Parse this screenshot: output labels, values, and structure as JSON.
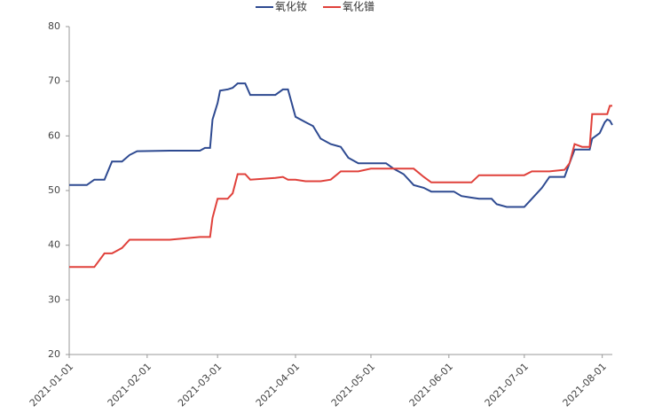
{
  "chart_data": {
    "type": "line",
    "x": [
      "2021-01-01",
      "2021-01-08",
      "2021-01-11",
      "2021-01-15",
      "2021-01-18",
      "2021-01-22",
      "2021-01-25",
      "2021-01-28",
      "2021-02-10",
      "2021-02-22",
      "2021-02-24",
      "2021-02-26",
      "2021-02-27",
      "2021-03-01",
      "2021-03-02",
      "2021-03-05",
      "2021-03-07",
      "2021-03-09",
      "2021-03-12",
      "2021-03-14",
      "2021-03-24",
      "2021-03-27",
      "2021-03-29",
      "2021-04-01",
      "2021-04-05",
      "2021-04-08",
      "2021-04-11",
      "2021-04-15",
      "2021-04-19",
      "2021-04-22",
      "2021-04-26",
      "2021-05-01",
      "2021-05-07",
      "2021-05-10",
      "2021-05-14",
      "2021-05-18",
      "2021-05-22",
      "2021-05-25",
      "2021-06-03",
      "2021-06-06",
      "2021-06-10",
      "2021-06-13",
      "2021-06-18",
      "2021-06-20",
      "2021-06-24",
      "2021-07-01",
      "2021-07-04",
      "2021-07-08",
      "2021-07-11",
      "2021-07-17",
      "2021-07-19",
      "2021-07-21",
      "2021-07-24",
      "2021-07-27",
      "2021-07-28",
      "2021-07-31",
      "2021-08-02",
      "2021-08-03",
      "2021-08-04",
      "2021-08-05"
    ],
    "series": [
      {
        "name": "氧化钕",
        "color": "#2e4a91",
        "values": [
          51,
          51,
          52,
          52,
          55.3,
          55.3,
          56.5,
          57.2,
          57.3,
          57.3,
          57.8,
          57.8,
          63,
          66,
          68.3,
          68.5,
          68.8,
          69.6,
          69.6,
          67.5,
          67.5,
          68.5,
          68.5,
          63.5,
          62.5,
          61.8,
          59.5,
          58.5,
          58,
          56,
          55,
          55,
          55,
          54,
          53,
          51,
          50.5,
          49.8,
          49.8,
          49,
          48.7,
          48.5,
          48.5,
          47.5,
          47,
          47,
          48.5,
          50.5,
          52.5,
          52.5,
          55,
          57.5,
          57.5,
          57.5,
          59.5,
          60.5,
          62.5,
          63,
          62.8,
          62
        ]
      },
      {
        "name": "氧化镨",
        "color": "#e0413b",
        "values": [
          36,
          36,
          36,
          38.5,
          38.5,
          39.5,
          41,
          41,
          41,
          41.5,
          41.5,
          41.5,
          45,
          48.5,
          48.5,
          48.5,
          49.5,
          53,
          53,
          52,
          52.3,
          52.5,
          52,
          52,
          51.7,
          51.7,
          51.7,
          52,
          53.5,
          53.5,
          53.5,
          54,
          54,
          54,
          54,
          54,
          52.5,
          51.5,
          51.5,
          51.5,
          51.5,
          52.8,
          52.8,
          52.8,
          52.8,
          52.8,
          53.5,
          53.5,
          53.5,
          53.8,
          55,
          58.5,
          58,
          58,
          64,
          64,
          64,
          64,
          65.5,
          65.5
        ]
      }
    ],
    "xlim": [
      "2021-01-01",
      "2021-08-05"
    ],
    "xticks": [
      "2021-01-01",
      "2021-02-01",
      "2021-03-01",
      "2021-04-01",
      "2021-05-01",
      "2021-06-01",
      "2021-07-01",
      "2021-08-01"
    ],
    "ylim": [
      20,
      80
    ],
    "yticks": [
      20,
      30,
      40,
      50,
      60,
      70,
      80
    ]
  }
}
